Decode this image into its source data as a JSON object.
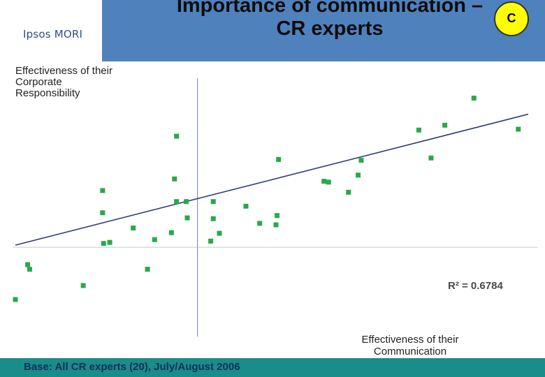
{
  "header": {
    "logo": "Ipsos MORI",
    "title_line1": "Importance of communication –",
    "title_line2": "CR experts",
    "badge": "C",
    "brand_color": "#4f81bd"
  },
  "footer": {
    "base_note": "Base: All CR experts (20), July/August 2006",
    "color": "#1a8c8a"
  },
  "chart_data": {
    "type": "scatter",
    "title": "",
    "xlabel": "Effectiveness of their Communication",
    "ylabel": "Effectiveness of their Corporate Responsibility",
    "xlim": [
      0,
      100
    ],
    "ylim": [
      0,
      100
    ],
    "grid": false,
    "marker_color": "#2aa84a",
    "trendline": {
      "type": "linear",
      "x": [
        0,
        100
      ],
      "y": [
        25.7,
        87.4
      ],
      "color": "#2f3d7a"
    },
    "annotation": "R² = 0.6784",
    "reference_lines": {
      "x": 35.7,
      "y": 25.7
    },
    "points": [
      {
        "x": 0.0,
        "y": 0.0
      },
      {
        "x": 2.4,
        "y": 16.5
      },
      {
        "x": 2.8,
        "y": 14.3
      },
      {
        "x": 13.3,
        "y": 6.6
      },
      {
        "x": 17.1,
        "y": 51.5
      },
      {
        "x": 17.1,
        "y": 41.0
      },
      {
        "x": 17.3,
        "y": 26.5
      },
      {
        "x": 18.5,
        "y": 27.0
      },
      {
        "x": 23.1,
        "y": 33.8
      },
      {
        "x": 25.9,
        "y": 14.3
      },
      {
        "x": 27.3,
        "y": 28.3
      },
      {
        "x": 30.6,
        "y": 31.6
      },
      {
        "x": 31.2,
        "y": 57.0
      },
      {
        "x": 31.6,
        "y": 77.2
      },
      {
        "x": 31.6,
        "y": 46.3
      },
      {
        "x": 33.5,
        "y": 46.3
      },
      {
        "x": 33.7,
        "y": 38.6
      },
      {
        "x": 38.3,
        "y": 27.6
      },
      {
        "x": 38.8,
        "y": 38.2
      },
      {
        "x": 38.8,
        "y": 46.3
      },
      {
        "x": 40.0,
        "y": 31.3
      },
      {
        "x": 45.2,
        "y": 44.1
      },
      {
        "x": 47.9,
        "y": 36.0
      },
      {
        "x": 51.1,
        "y": 35.3
      },
      {
        "x": 51.3,
        "y": 39.7
      },
      {
        "x": 51.6,
        "y": 66.2
      },
      {
        "x": 60.5,
        "y": 55.9
      },
      {
        "x": 61.4,
        "y": 55.5
      },
      {
        "x": 65.3,
        "y": 50.7
      },
      {
        "x": 67.2,
        "y": 58.8
      },
      {
        "x": 67.8,
        "y": 65.8
      },
      {
        "x": 79.1,
        "y": 80.1
      },
      {
        "x": 81.5,
        "y": 66.9
      },
      {
        "x": 84.2,
        "y": 82.4
      },
      {
        "x": 89.9,
        "y": 95.2
      },
      {
        "x": 98.6,
        "y": 80.5
      }
    ]
  }
}
